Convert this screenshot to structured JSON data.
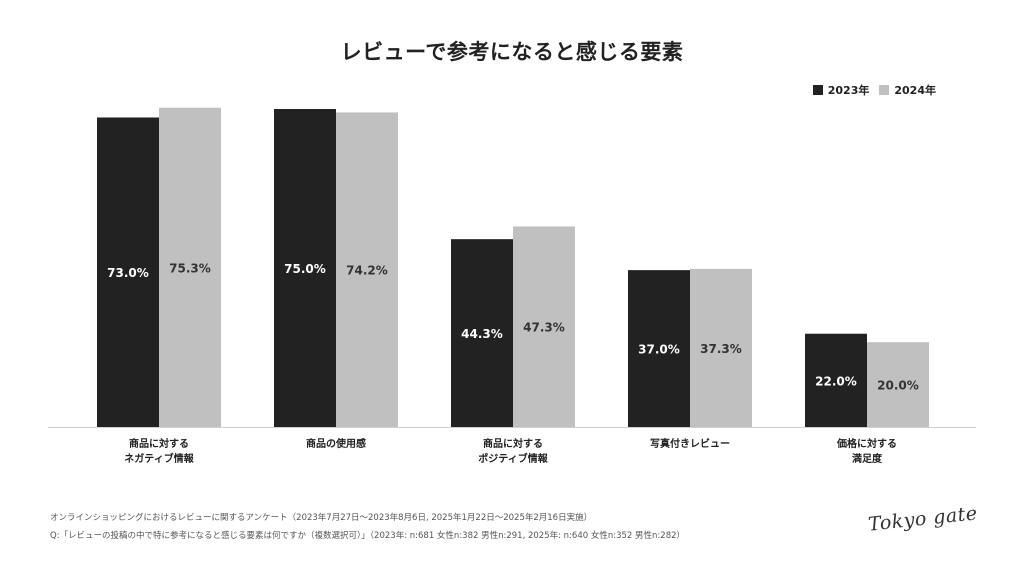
{
  "chart_data": {
    "type": "bar",
    "title": "レビューで参考になると感じる要素",
    "categories": [
      [
        "商品に対する",
        "ネガティブ情報"
      ],
      [
        "商品の使用感"
      ],
      [
        "商品に対する",
        "ポジティブ情報"
      ],
      [
        "写真付きレビュー"
      ],
      [
        "価格に対する",
        "満足度"
      ]
    ],
    "series": [
      {
        "name": "2023年",
        "color": "#222222",
        "label_color": "#ffffff",
        "values": [
          73.0,
          75.0,
          44.3,
          37.0,
          22.0
        ],
        "labels": [
          "73.0%",
          "75.0%",
          "44.3%",
          "37.0%",
          "22.0%"
        ]
      },
      {
        "name": "2024年",
        "color": "#c0c0c0",
        "label_color": "#333333",
        "values": [
          75.3,
          74.2,
          47.3,
          37.3,
          20.0
        ],
        "labels": [
          "75.3%",
          "74.2%",
          "47.3%",
          "37.3%",
          "20.0%"
        ]
      }
    ],
    "ylim": [
      0,
      75
    ],
    "grid": false,
    "legend_position": "top-right",
    "xlabel": "",
    "ylabel": ""
  },
  "footnotes": {
    "line1": "オンラインショッピングにおけるレビューに関するアンケート（2023年7月27日〜2023年8月6日, 2025年1月22日〜2025年2月16日実施）",
    "line2": "Q:「レビューの投稿の中で特に参考になると感じる要素は何ですか（複数選択可）」（2023年: n:681 女性n:382 男性n:291, 2025年: n:640 女性n:352 男性n:282）"
  },
  "logo": "Tokyo gate"
}
